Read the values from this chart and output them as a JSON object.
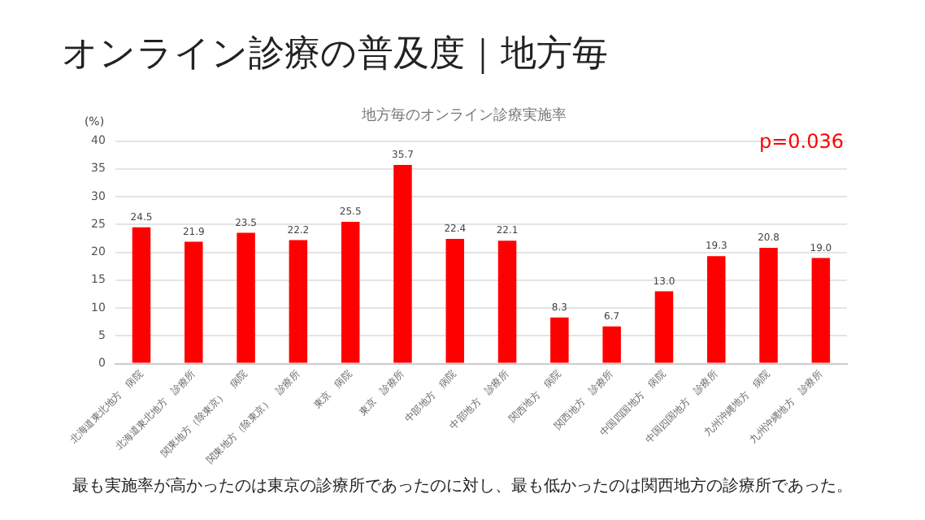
{
  "chart_data": {
    "type": "bar",
    "title": "オンライン診療の普及度｜地方毎",
    "subtitle": "地方毎のオンライン診療実施率",
    "ylabel": "(%)",
    "categories": [
      "北海道東北地方　病院",
      "北海道東北地方　診療所",
      "関東地方（除東京）　病院",
      "関東地方（除東京）　診療所",
      "東京　病院",
      "東京　診療所",
      "中部地方　病院",
      "中部地方　診療所",
      "関西地方　病院",
      "関西地方　診療所",
      "中国四国地方　病院",
      "中国四国地方　診療所",
      "九州沖縄地方　病院",
      "九州沖縄地方　診療所"
    ],
    "values": [
      24.5,
      21.9,
      23.5,
      22.2,
      25.5,
      35.7,
      22.4,
      22.1,
      8.3,
      6.7,
      13.0,
      19.3,
      20.8,
      19.0
    ],
    "value_labels": [
      "24.5",
      "21.9",
      "23.5",
      "22.2",
      "25.5",
      "35.7",
      "22.4",
      "22.1",
      "8.3",
      "6.7",
      "13.0",
      "19.3",
      "20.8",
      "19.0"
    ],
    "color": "#ff0000",
    "ylim": [
      0,
      40
    ],
    "yticks": [
      0,
      5,
      10,
      15,
      20,
      25,
      30,
      35,
      40
    ],
    "grid": "y",
    "legend": false,
    "annotations": [
      "p=0.036",
      "最も実施率が高かったのは東京の診療所であったのに対し、最も低かったのは関西地方の診療所であった。"
    ]
  }
}
